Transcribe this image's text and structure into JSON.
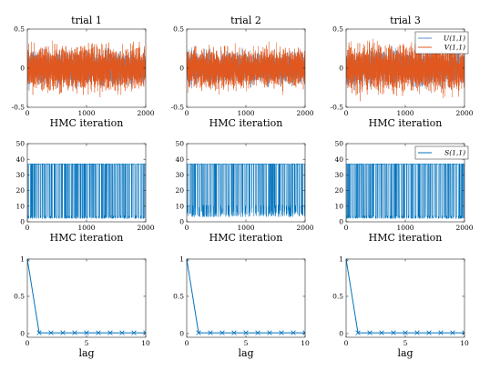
{
  "colors": {
    "U": "#5b8fc7",
    "V": "#e2571e",
    "S": "#0072bd",
    "acf": "#0072bd",
    "axis": "#262626"
  },
  "chart_data": [
    {
      "id": "trace-uv-1",
      "type": "line",
      "title": "trial 1",
      "xlabel": "HMC iteration",
      "ylabel": "",
      "xlim": [
        0,
        2000
      ],
      "ylim": [
        -0.5,
        0.5
      ],
      "xticks": [
        0,
        1000,
        2000
      ],
      "yticks": [
        -0.5,
        0,
        0.5
      ],
      "xticklabels": [
        "0",
        "1000",
        "2000"
      ],
      "yticklabels": [
        "-0.5",
        "0",
        "0.5"
      ],
      "n": 2000,
      "series": [
        {
          "name": "",
          "key": "U",
          "kind": "noise",
          "amplitude": 0.2,
          "seed": 11
        },
        {
          "name": "",
          "key": "V",
          "kind": "noise",
          "amplitude": 0.28,
          "seed": 12
        }
      ],
      "legend": null
    },
    {
      "id": "trace-uv-2",
      "type": "line",
      "title": "trial 2",
      "xlabel": "HMC iteration",
      "ylabel": "",
      "xlim": [
        0,
        2000
      ],
      "ylim": [
        -0.5,
        0.5
      ],
      "xticks": [
        0,
        1000,
        2000
      ],
      "yticks": [
        -0.5,
        0,
        0.5
      ],
      "xticklabels": [
        "0",
        "1000",
        "2000"
      ],
      "yticklabels": [
        "-0.5",
        "0",
        "0.5"
      ],
      "n": 2000,
      "series": [
        {
          "name": "",
          "key": "U",
          "kind": "noise",
          "amplitude": 0.2,
          "seed": 21
        },
        {
          "name": "",
          "key": "V",
          "kind": "noise",
          "amplitude": 0.26,
          "seed": 22
        }
      ],
      "legend": null
    },
    {
      "id": "trace-uv-3",
      "type": "line",
      "title": "trial 3",
      "xlabel": "HMC iteration",
      "ylabel": "",
      "xlim": [
        0,
        2000
      ],
      "ylim": [
        -0.5,
        0.5
      ],
      "xticks": [
        0,
        1000,
        2000
      ],
      "yticks": [
        -0.5,
        0,
        0.5
      ],
      "xticklabels": [
        "0",
        "1000",
        "2000"
      ],
      "yticklabels": [
        "-0.5",
        "0",
        "0.5"
      ],
      "n": 2000,
      "series": [
        {
          "name": "U(1,1)",
          "key": "U",
          "kind": "noise",
          "amplitude": 0.22,
          "seed": 31
        },
        {
          "name": "V(1,1)",
          "key": "V",
          "kind": "noise",
          "amplitude": 0.3,
          "seed": 32
        }
      ],
      "legend": "top-right"
    },
    {
      "id": "trace-s-1",
      "type": "line",
      "title": "",
      "xlabel": "HMC iteration",
      "ylabel": "",
      "xlim": [
        0,
        2000
      ],
      "ylim": [
        0,
        50
      ],
      "xticks": [
        0,
        1000,
        2000
      ],
      "yticks": [
        0,
        10,
        20,
        30,
        40,
        50
      ],
      "xticklabels": [
        "0",
        "1000",
        "2000"
      ],
      "yticklabels": [
        "0",
        "10",
        "20",
        "30",
        "40",
        "50"
      ],
      "n": 2000,
      "series": [
        {
          "name": "",
          "key": "S",
          "kind": "switch",
          "high": 37,
          "low": 2,
          "jitter": 2,
          "seed": 41
        }
      ],
      "legend": null
    },
    {
      "id": "trace-s-2",
      "type": "line",
      "title": "",
      "xlabel": "HMC iteration",
      "ylabel": "",
      "xlim": [
        0,
        2000
      ],
      "ylim": [
        0,
        50
      ],
      "xticks": [
        0,
        1000,
        2000
      ],
      "yticks": [
        0,
        10,
        20,
        30,
        40,
        50
      ],
      "xticklabels": [
        "0",
        "1000",
        "2000"
      ],
      "yticklabels": [
        "0",
        "10",
        "20",
        "30",
        "40",
        "50"
      ],
      "n": 2000,
      "series": [
        {
          "name": "",
          "key": "S",
          "kind": "switch",
          "high": 37,
          "low": 3,
          "jitter": 8,
          "seed": 51
        }
      ],
      "legend": null
    },
    {
      "id": "trace-s-3",
      "type": "line",
      "title": "",
      "xlabel": "HMC iteration",
      "ylabel": "",
      "xlim": [
        0,
        2000
      ],
      "ylim": [
        0,
        50
      ],
      "xticks": [
        0,
        1000,
        2000
      ],
      "yticks": [
        0,
        10,
        20,
        30,
        40,
        50
      ],
      "xticklabels": [
        "0",
        "1000",
        "2000"
      ],
      "yticklabels": [
        "0",
        "10",
        "20",
        "30",
        "40",
        "50"
      ],
      "n": 2000,
      "series": [
        {
          "name": "S(1,1)",
          "key": "S",
          "kind": "switch",
          "high": 37,
          "low": 2,
          "jitter": 2,
          "seed": 61
        }
      ],
      "legend": "top-right"
    },
    {
      "id": "acf-1",
      "type": "line",
      "title": "",
      "xlabel": "lag",
      "ylabel": "",
      "xlim": [
        0,
        10
      ],
      "ylim": [
        -0.05,
        1.0
      ],
      "xticks": [
        0,
        5,
        10
      ],
      "yticks": [
        0,
        0.5,
        1
      ],
      "xticklabels": [
        "0",
        "5",
        "10"
      ],
      "yticklabels": [
        "0",
        "0.5",
        "1"
      ],
      "series": [
        {
          "name": "",
          "key": "acf",
          "kind": "points",
          "x": [
            0,
            1,
            2,
            3,
            4,
            5,
            6,
            7,
            8,
            9,
            10
          ],
          "y": [
            1.0,
            0.01,
            0.01,
            0.01,
            0.01,
            0.01,
            0.01,
            0.01,
            0.01,
            0.01,
            0.01
          ],
          "marker": "x"
        }
      ],
      "legend": null
    },
    {
      "id": "acf-2",
      "type": "line",
      "title": "",
      "xlabel": "lag",
      "ylabel": "",
      "xlim": [
        0,
        10
      ],
      "ylim": [
        -0.05,
        1.0
      ],
      "xticks": [
        0,
        5,
        10
      ],
      "yticks": [
        0,
        0.5,
        1
      ],
      "xticklabels": [
        "0",
        "5",
        "10"
      ],
      "yticklabels": [
        "0",
        "0.5",
        "1"
      ],
      "series": [
        {
          "name": "",
          "key": "acf",
          "kind": "points",
          "x": [
            0,
            1,
            2,
            3,
            4,
            5,
            6,
            7,
            8,
            9,
            10
          ],
          "y": [
            1.0,
            0.01,
            0.01,
            0.01,
            0.01,
            0.01,
            0.01,
            0.01,
            0.01,
            0.01,
            0.01
          ],
          "marker": "x"
        }
      ],
      "legend": null
    },
    {
      "id": "acf-3",
      "type": "line",
      "title": "",
      "xlabel": "lag",
      "ylabel": "",
      "xlim": [
        0,
        10
      ],
      "ylim": [
        -0.05,
        1.0
      ],
      "xticks": [
        0,
        5,
        10
      ],
      "yticks": [
        0,
        0.5,
        1
      ],
      "xticklabels": [
        "0",
        "5",
        "10"
      ],
      "yticklabels": [
        "0",
        "0.5",
        "1"
      ],
      "series": [
        {
          "name": "",
          "key": "acf",
          "kind": "points",
          "x": [
            0,
            1,
            2,
            3,
            4,
            5,
            6,
            7,
            8,
            9,
            10
          ],
          "y": [
            1.0,
            0.01,
            0.01,
            0.01,
            0.01,
            0.01,
            0.01,
            0.01,
            0.01,
            0.01,
            0.01
          ],
          "marker": "x"
        }
      ],
      "legend": null
    }
  ]
}
